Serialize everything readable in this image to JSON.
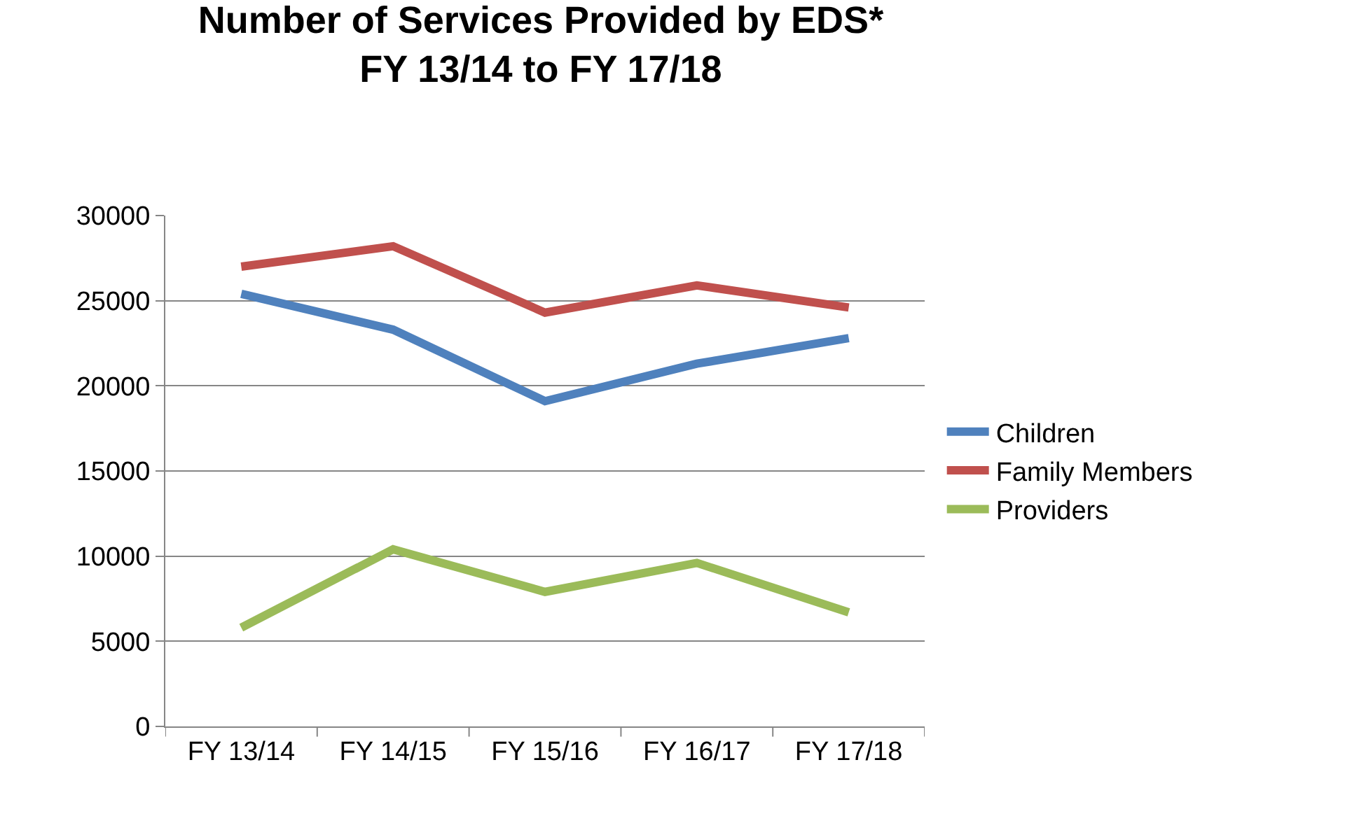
{
  "chart_data": {
    "type": "line",
    "title": "Number of Services Provided by EDS*\nFY 13/14 to FY 17/18",
    "categories": [
      "FY 13/14",
      "FY 14/15",
      "FY 15/16",
      "FY 16/17",
      "FY 17/18"
    ],
    "series": [
      {
        "name": "Children",
        "color": "#4f81bd",
        "values": [
          25400,
          23300,
          19100,
          21300,
          22800
        ]
      },
      {
        "name": "Family Members",
        "color": "#c0504d",
        "values": [
          27000,
          28200,
          24300,
          25900,
          24600
        ]
      },
      {
        "name": "Providers",
        "color": "#9bbb59",
        "values": [
          5800,
          10400,
          7900,
          9600,
          6700
        ]
      }
    ],
    "ylim": [
      0,
      30000
    ],
    "yticks": [
      0,
      5000,
      10000,
      15000,
      20000,
      25000,
      30000
    ],
    "grid": "y",
    "legend": "right",
    "marker": "none",
    "line_style": "solid"
  }
}
